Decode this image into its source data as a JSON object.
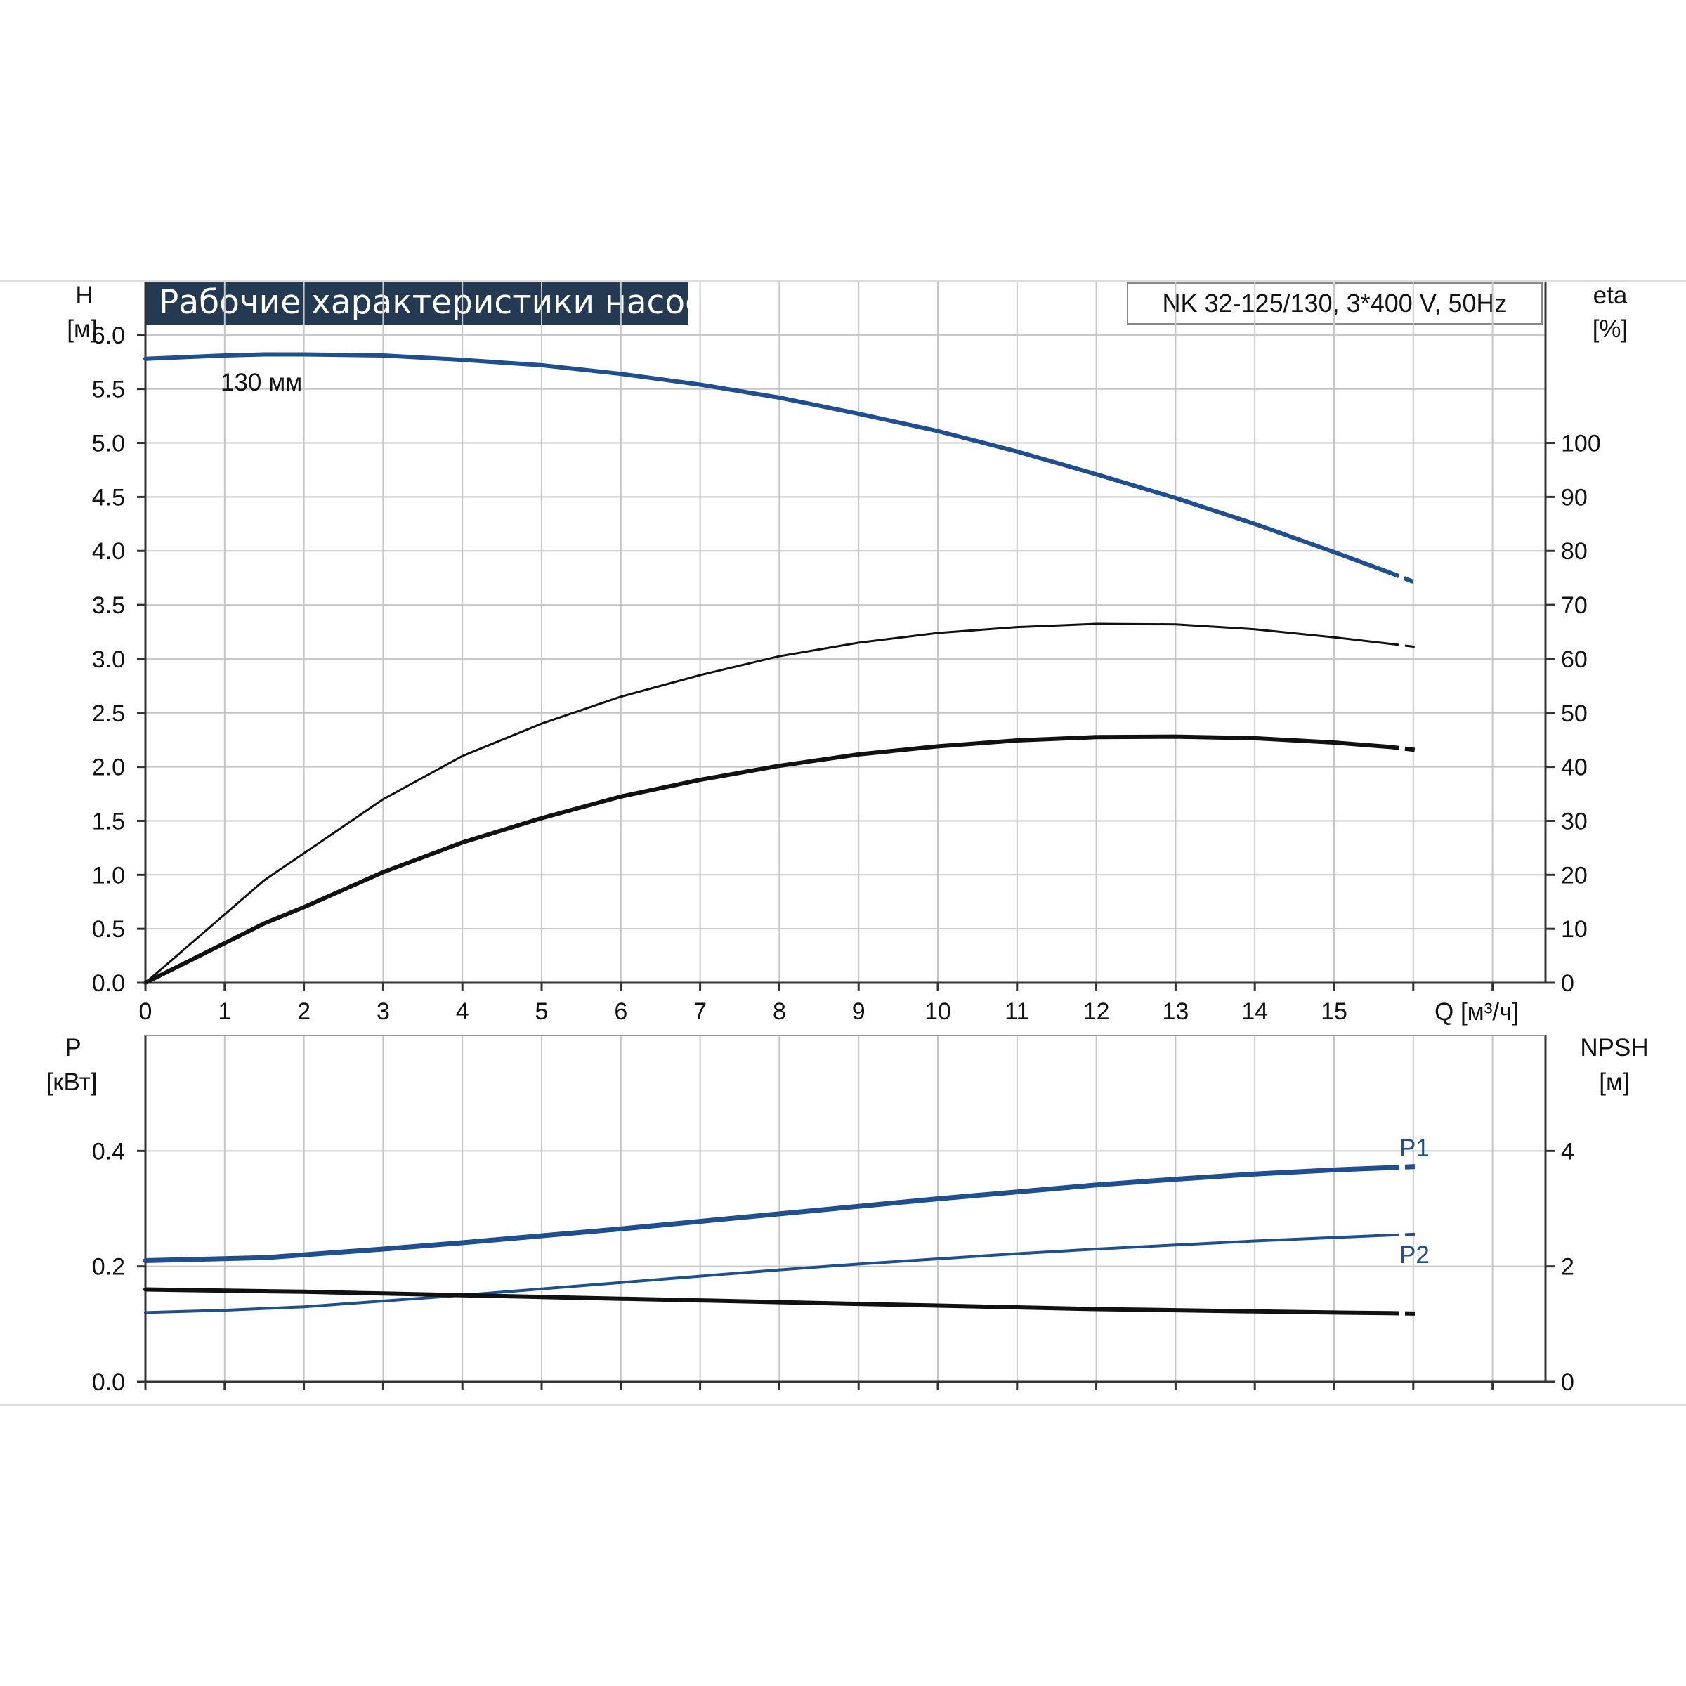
{
  "chart_data": [
    {
      "type": "line",
      "title": "Рабочие характеристики насоса",
      "model_label": "NK 32-125/130, 3*400 V, 50Hz",
      "left_axis": {
        "label": "H",
        "unit": "[м]",
        "ylim": [
          0,
          6.5
        ],
        "ticks": [
          "0.0",
          "0.5",
          "1.0",
          "1.5",
          "2.0",
          "2.5",
          "3.0",
          "3.5",
          "4.0",
          "4.5",
          "5.0",
          "5.5",
          "6.0"
        ]
      },
      "right_axis": {
        "label": "eta",
        "unit": "[%]",
        "ylim": [
          0,
          130
        ],
        "ticks": [
          "0",
          "10",
          "20",
          "30",
          "40",
          "50",
          "60",
          "70",
          "80",
          "90",
          "100"
        ]
      },
      "x_axis": {
        "label": "Q [м³/ч]",
        "xlim": [
          0,
          17.6
        ],
        "ticks": [
          "0",
          "1",
          "2",
          "3",
          "4",
          "5",
          "6",
          "7",
          "8",
          "9",
          "10",
          "11",
          "12",
          "13",
          "14",
          "15"
        ]
      },
      "grid": true,
      "annotation": "130 мм",
      "series": [
        {
          "axis": "left",
          "color": "#1f4f8e",
          "x": [
            0,
            1,
            1.5,
            2,
            3,
            4,
            5,
            6,
            7,
            8,
            9,
            10,
            11,
            12,
            13,
            14,
            15,
            15.7,
            16.05
          ],
          "values": [
            5.78,
            5.81,
            5.82,
            5.82,
            5.81,
            5.77,
            5.72,
            5.64,
            5.54,
            5.42,
            5.27,
            5.11,
            4.92,
            4.71,
            4.49,
            4.25,
            3.99,
            3.8,
            3.7
          ]
        },
        {
          "axis": "right",
          "color": "#111111",
          "x": [
            0,
            1.5,
            2,
            3,
            4,
            5,
            6,
            7,
            8,
            9,
            10,
            11,
            12,
            13,
            14,
            15,
            15.7,
            16.05
          ],
          "values": [
            0,
            19,
            24,
            34,
            42,
            48,
            53,
            57,
            60.5,
            63,
            64.8,
            65.9,
            66.5,
            66.4,
            65.5,
            64,
            62.8,
            62.2
          ]
        },
        {
          "axis": "right",
          "color": "#111111",
          "x": [
            0,
            1.5,
            2,
            3,
            4,
            5,
            6,
            7,
            8,
            9,
            10,
            11,
            12,
            13,
            14,
            15,
            15.7,
            16.05
          ],
          "values": [
            0,
            11,
            14,
            20.5,
            26,
            30.5,
            34.5,
            37.6,
            40.2,
            42.3,
            43.8,
            44.9,
            45.5,
            45.6,
            45.3,
            44.5,
            43.7,
            43.1
          ]
        }
      ]
    },
    {
      "type": "line",
      "left_axis": {
        "label": "P",
        "unit": "[кВт]",
        "ylim": [
          0,
          0.6
        ],
        "ticks": [
          "0.0",
          "0.2",
          "0.4"
        ]
      },
      "right_axis": {
        "label": "NPSH",
        "unit": "[м]",
        "ylim": [
          0,
          6
        ],
        "ticks": [
          "0",
          "2",
          "4"
        ]
      },
      "x_axis": {
        "xlim": [
          0,
          17.6
        ]
      },
      "grid": true,
      "series": [
        {
          "name": "P1",
          "axis": "left",
          "color": "#1f4f8e",
          "x": [
            0,
            1.5,
            3,
            4,
            5,
            6,
            7,
            8,
            9,
            10,
            11,
            12,
            13,
            14,
            15,
            15.7,
            16.05
          ],
          "values": [
            0.21,
            0.215,
            0.23,
            0.241,
            0.253,
            0.265,
            0.278,
            0.291,
            0.304,
            0.317,
            0.329,
            0.341,
            0.351,
            0.36,
            0.367,
            0.371,
            0.373
          ]
        },
        {
          "name": "P2",
          "axis": "left",
          "color": "#1f4f8e",
          "x": [
            0,
            1,
            2,
            3,
            4,
            5,
            6,
            7,
            8,
            9,
            10,
            11,
            12,
            13,
            14,
            15,
            15.7,
            16.05
          ],
          "values": [
            0.12,
            0.124,
            0.13,
            0.14,
            0.15,
            0.161,
            0.172,
            0.183,
            0.194,
            0.204,
            0.213,
            0.222,
            0.23,
            0.237,
            0.244,
            0.25,
            0.254,
            0.256
          ]
        },
        {
          "axis": "right",
          "color": "#111111",
          "x": [
            0,
            1.5,
            2,
            3,
            4,
            5,
            6,
            7,
            8,
            9,
            10,
            11,
            12,
            13,
            14,
            15,
            15.7,
            16.05
          ],
          "values": [
            1.6,
            1.57,
            1.56,
            1.53,
            1.5,
            1.47,
            1.44,
            1.41,
            1.38,
            1.35,
            1.32,
            1.29,
            1.26,
            1.24,
            1.22,
            1.2,
            1.19,
            1.18
          ]
        }
      ]
    }
  ]
}
